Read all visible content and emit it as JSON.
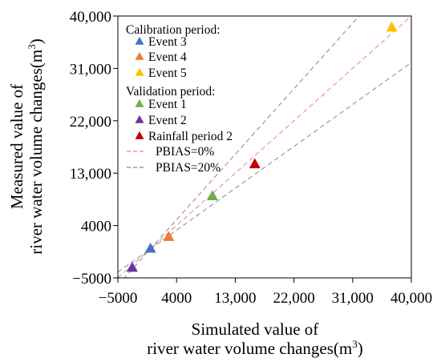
{
  "chart_data": {
    "type": "scatter",
    "title": "",
    "xlabel": {
      "line1": "Simulated value of",
      "line2_prefix": "river water volume changes(m",
      "line2_sup": "3",
      "line2_suffix": ")"
    },
    "ylabel": {
      "line1": "Measured value of",
      "line2_prefix": "river water volume changes(m",
      "line2_sup": "3",
      "line2_suffix": ")"
    },
    "xlim": [
      -5000,
      40000
    ],
    "ylim": [
      -5000,
      40000
    ],
    "xticks": [
      -5000,
      4000,
      13000,
      22000,
      31000,
      40000
    ],
    "yticks": [
      -5000,
      4000,
      13000,
      22000,
      31000,
      40000
    ],
    "xtick_labels": [
      "−5000",
      "4000",
      "13,000",
      "22,000",
      "31,000",
      "40,000"
    ],
    "ytick_labels": [
      "−5000",
      "4000",
      "13,000",
      "22,000",
      "31,000",
      "40,000"
    ],
    "grid": false,
    "legend": {
      "placement": "top-left",
      "calibration_heading": "Calibration period:",
      "validation_heading": "Validation period:"
    },
    "series": [
      {
        "name": "Event 3",
        "group": "calibration",
        "color": "#4472C4",
        "marker": "triangle",
        "x": 0,
        "y": 0
      },
      {
        "name": "Event 4",
        "group": "calibration",
        "color": "#ED7D31",
        "marker": "triangle",
        "x": 2800,
        "y": 2000
      },
      {
        "name": "Event 5",
        "group": "calibration",
        "color": "#FFC000",
        "marker": "triangle",
        "x": 37000,
        "y": 38000
      },
      {
        "name": "Event 1",
        "group": "validation",
        "color": "#70AD47",
        "marker": "triangle",
        "x": 9500,
        "y": 9000
      },
      {
        "name": "Event 2",
        "group": "validation",
        "color": "#7030A0",
        "marker": "triangle",
        "x": -2800,
        "y": -3300
      },
      {
        "name": "Rainfall period 2",
        "group": "validation",
        "color": "#C00000",
        "marker": "triangle",
        "x": 16000,
        "y": 14500
      }
    ],
    "reference_lines": [
      {
        "name": "PBIAS=0%",
        "color": "#F08080",
        "dash": "dashed",
        "slope": 1.0
      },
      {
        "name": "PBIAS=20%",
        "color": "#888888",
        "dash": "dashed",
        "slopes": [
          1.25,
          0.8
        ]
      }
    ]
  }
}
